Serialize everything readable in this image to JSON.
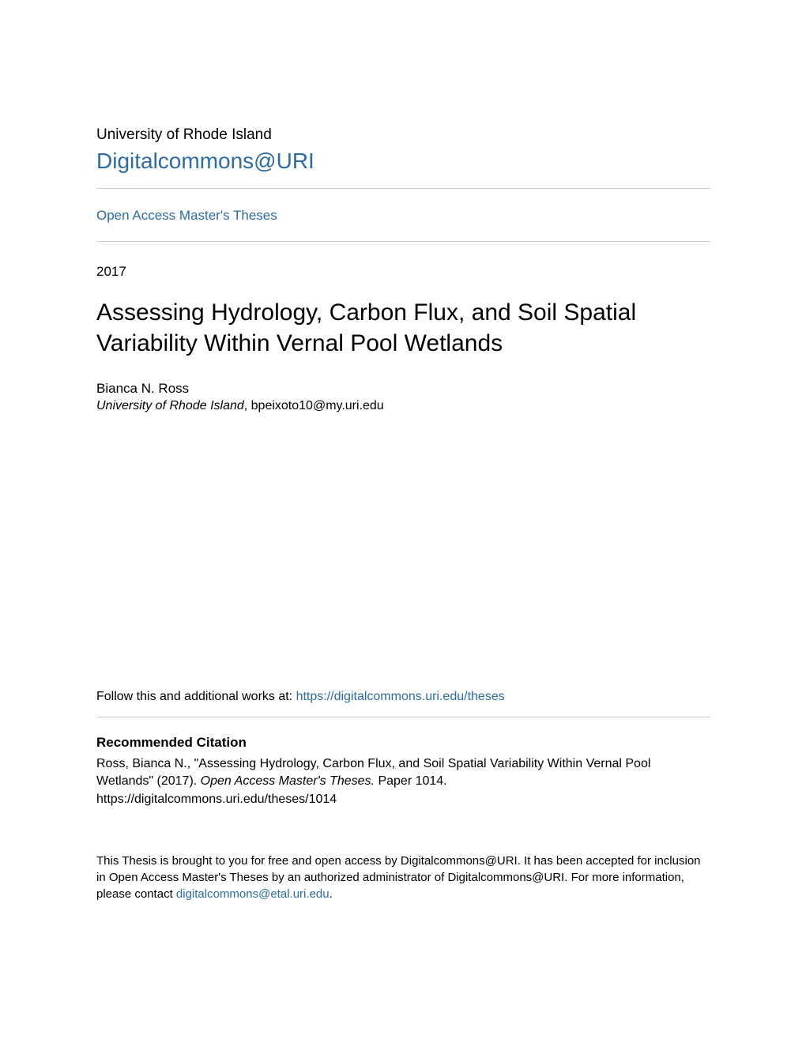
{
  "header": {
    "institution": "University of Rhode Island",
    "repository_name": "Digitalcommons@URI",
    "collection_name": "Open Access Master's Theses"
  },
  "record": {
    "year": "2017",
    "title": "Assessing Hydrology, Carbon Flux, and Soil Spatial Variability Within Vernal Pool Wetlands",
    "author_name": "Bianca N. Ross",
    "affiliation": "University of Rhode Island",
    "author_email": ", bpeixoto10@my.uri.edu"
  },
  "follow": {
    "prefix": "Follow this and additional works at: ",
    "url": "https://digitalcommons.uri.edu/theses"
  },
  "citation": {
    "heading": "Recommended Citation",
    "line1": "Ross, Bianca N., \"Assessing Hydrology, Carbon Flux, and Soil Spatial Variability Within Vernal Pool Wetlands\" (2017). ",
    "series_italic": "Open Access Master's Theses.",
    "paper": " Paper 1014.",
    "url": "https://digitalcommons.uri.edu/theses/1014"
  },
  "access": {
    "text_before": "This Thesis is brought to you for free and open access by Digitalcommons@URI. It has been accepted for inclusion in Open Access Master's Theses by an authorized administrator of Digitalcommons@URI. For more information, please contact ",
    "contact_email": "digitalcommons@etal.uri.edu",
    "period": "."
  },
  "colors": {
    "link_color": "#2b6ca3",
    "text_color": "#000000",
    "divider_color": "#cccccc",
    "background": "#ffffff"
  }
}
